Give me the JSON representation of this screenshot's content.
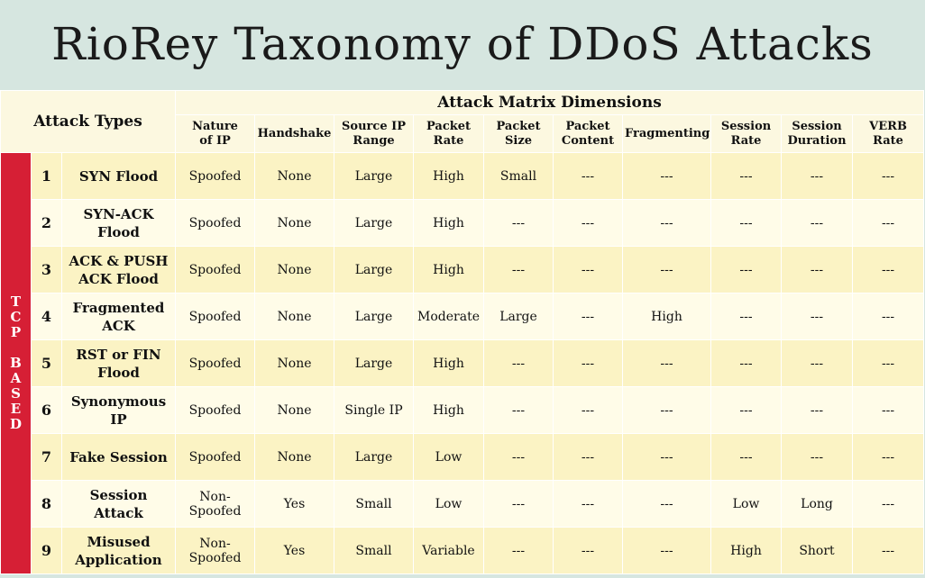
{
  "title": "RioRey Taxonomy of DDoS Attacks",
  "header": {
    "attack_types": "Attack Types",
    "dimensions": "Attack Matrix Dimensions",
    "columns": [
      [
        "Nature",
        "of IP"
      ],
      [
        "Handshake"
      ],
      [
        "Source IP",
        "Range"
      ],
      [
        "Packet",
        "Rate"
      ],
      [
        "Packet",
        "Size"
      ],
      [
        "Packet",
        "Content"
      ],
      [
        "Fragmenting"
      ],
      [
        "Session",
        "Rate"
      ],
      [
        "Session",
        "Duration"
      ],
      [
        "VERB",
        "Rate"
      ]
    ]
  },
  "group_label": "TCP BASED",
  "rows": [
    {
      "num": "1",
      "name": [
        "SYN Flood"
      ],
      "values": [
        "Spoofed",
        "None",
        "Large",
        "High",
        "Small",
        "---",
        "---",
        "---",
        "---",
        "---"
      ]
    },
    {
      "num": "2",
      "name": [
        "SYN-ACK Flood"
      ],
      "values": [
        "Spoofed",
        "None",
        "Large",
        "High",
        "---",
        "---",
        "---",
        "---",
        "---",
        "---"
      ]
    },
    {
      "num": "3",
      "name": [
        "ACK & PUSH",
        "ACK Flood"
      ],
      "values": [
        "Spoofed",
        "None",
        "Large",
        "High",
        "---",
        "---",
        "---",
        "---",
        "---",
        "---"
      ]
    },
    {
      "num": "4",
      "name": [
        "Fragmented",
        "ACK"
      ],
      "values": [
        "Spoofed",
        "None",
        "Large",
        "Moderate",
        "Large",
        "---",
        "High",
        "---",
        "---",
        "---"
      ]
    },
    {
      "num": "5",
      "name": [
        "RST or FIN",
        "Flood"
      ],
      "values": [
        "Spoofed",
        "None",
        "Large",
        "High",
        "---",
        "---",
        "---",
        "---",
        "---",
        "---"
      ]
    },
    {
      "num": "6",
      "name": [
        "Synonymous",
        "IP"
      ],
      "values": [
        "Spoofed",
        "None",
        "Single IP",
        "High",
        "---",
        "---",
        "---",
        "---",
        "---",
        "---"
      ]
    },
    {
      "num": "7",
      "name": [
        "Fake Session"
      ],
      "values": [
        "Spoofed",
        "None",
        "Large",
        "Low",
        "---",
        "---",
        "---",
        "---",
        "---",
        "---"
      ]
    },
    {
      "num": "8",
      "name": [
        "Session",
        "Attack"
      ],
      "values": [
        [
          "Non-",
          "Spoofed"
        ],
        "Yes",
        "Small",
        "Low",
        "---",
        "---",
        "---",
        "Low",
        "Long",
        "---"
      ]
    },
    {
      "num": "9",
      "name": [
        "Misused",
        "Application"
      ],
      "values": [
        [
          "Non-",
          "Spoofed"
        ],
        "Yes",
        "Small",
        "Variable",
        "---",
        "---",
        "---",
        "High",
        "Short",
        "---"
      ]
    }
  ]
}
